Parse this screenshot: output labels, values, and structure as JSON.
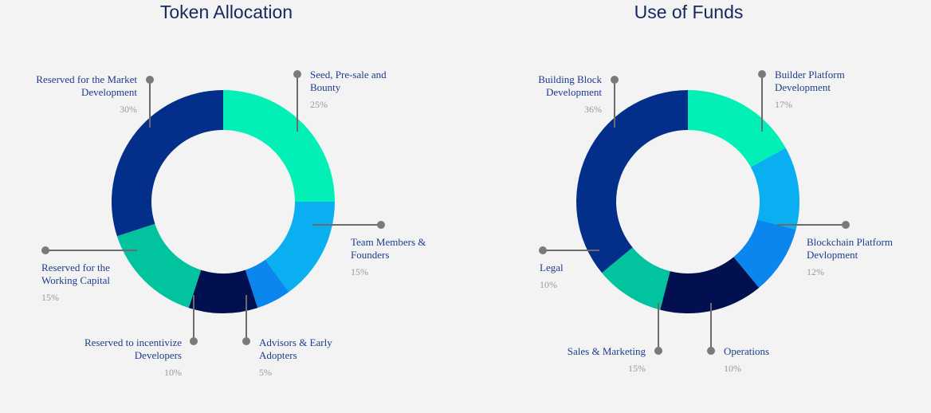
{
  "chart_data": [
    {
      "type": "donut",
      "title": "Token Allocation",
      "categories": [
        "Seed, Pre-sale and Bounty",
        "Team Members & Founders",
        "Advisors & Early Adopters",
        "Reserved to incentivize Developers",
        "Reserved for the Working Capital",
        "Reserved for the Market Development"
      ],
      "values": [
        25,
        15,
        5,
        10,
        15,
        30
      ],
      "value_labels": [
        "25%",
        "15%",
        "5%",
        "10%",
        "15%",
        "30%"
      ],
      "colors": [
        "#02efb6",
        "#0aaff2",
        "#0b86ef",
        "#03104f",
        "#01c39d",
        "#032f8b"
      ]
    },
    {
      "type": "donut",
      "title": "Use of Funds",
      "categories": [
        "Builder Platform Development",
        "Blockchain Platform Devlopment",
        "Operations",
        "Sales & Marketing",
        "Legal",
        "Building Block Development"
      ],
      "values": [
        17,
        12,
        10,
        15,
        10,
        36
      ],
      "value_labels": [
        "17%",
        "12%",
        "10%",
        "15%",
        "10%",
        "36%"
      ],
      "colors": [
        "#02efb6",
        "#0aaff2",
        "#0b86ef",
        "#03104f",
        "#01c39d",
        "#032f8b"
      ]
    }
  ]
}
